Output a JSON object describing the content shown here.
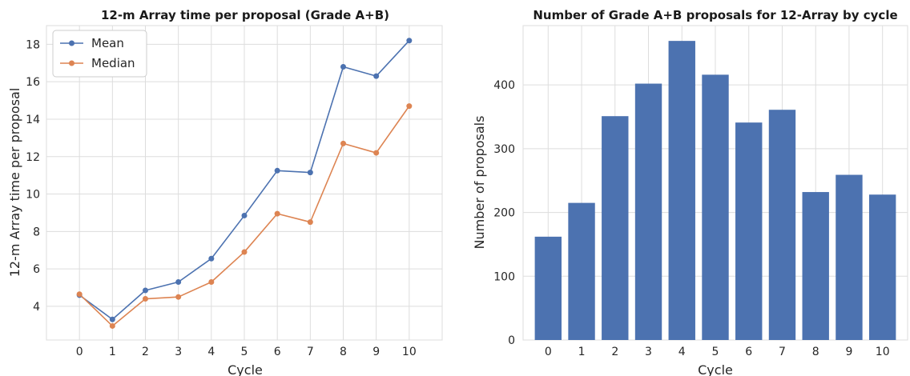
{
  "chart_data": [
    {
      "type": "line",
      "title": "12-m Array time per proposal (Grade A+B)",
      "xlabel": "Cycle",
      "ylabel": "12-m Array time per proposal",
      "categories": [
        "0",
        "1",
        "2",
        "3",
        "4",
        "5",
        "6",
        "7",
        "8",
        "9",
        "10"
      ],
      "x": [
        0,
        1,
        2,
        3,
        4,
        5,
        6,
        7,
        8,
        9,
        10
      ],
      "xlim": [
        -1,
        11
      ],
      "ylim": [
        2.2,
        19
      ],
      "yticks": [
        4,
        6,
        8,
        10,
        12,
        14,
        16,
        18
      ],
      "grid": true,
      "legend_position": "top-left",
      "series": [
        {
          "name": "Mean",
          "color": "#4c72b0",
          "values": [
            4.6,
            3.3,
            4.85,
            5.3,
            6.55,
            8.85,
            11.25,
            11.15,
            16.8,
            16.3,
            18.2
          ]
        },
        {
          "name": "Median",
          "color": "#dd8452",
          "values": [
            4.65,
            2.95,
            4.4,
            4.5,
            5.3,
            6.9,
            8.95,
            8.5,
            12.7,
            12.2,
            14.7
          ]
        }
      ]
    },
    {
      "type": "bar",
      "title": "Number of Grade A+B proposals for 12-Array by cycle",
      "xlabel": "Cycle",
      "ylabel": "Number of proposals",
      "categories": [
        "0",
        "1",
        "2",
        "3",
        "4",
        "5",
        "6",
        "7",
        "8",
        "9",
        "10"
      ],
      "values": [
        162,
        215,
        351,
        402,
        469,
        416,
        341,
        361,
        232,
        259,
        228
      ],
      "ylim": [
        0,
        493
      ],
      "yticks": [
        0,
        100,
        200,
        300,
        400
      ],
      "grid": true,
      "color": "#4c72b0"
    }
  ]
}
